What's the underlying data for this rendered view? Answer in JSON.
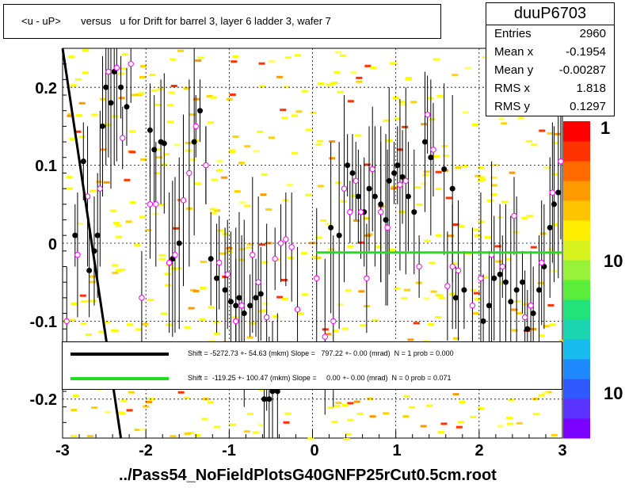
{
  "title": "<u - uP>       versus   u for Drift for barrel 3, layer 6 ladder 3, wafer 7",
  "stats": {
    "name": "duuP6703",
    "rows": [
      {
        "key": "Entries",
        "value": "2960"
      },
      {
        "key": "Mean x",
        "value": "-0.1954"
      },
      {
        "key": "Mean y",
        "value": "-0.00287"
      },
      {
        "key": "RMS x",
        "value": "1.818"
      },
      {
        "key": "RMS y",
        "value": "0.1297"
      }
    ]
  },
  "legend": [
    {
      "color": "#000000",
      "text": "Shift = -5272.73 +- 54.63 (mkm) Slope =   797.22 +- 0.00 (mrad)  N = 1 prob = 0.000"
    },
    {
      "color": "#22dd22",
      "text": "Shift =  -119.25 +- 100.47 (mkm) Slope =     0.00 +- 0.00 (mrad)  N = 0 prob = 0.071"
    }
  ],
  "footer": "../Pass54_NoFieldPlotsG40GNFP25rCut0.5cm.root",
  "z_ticks": [
    "1",
    "10",
    "10"
  ],
  "chart_data": {
    "type": "scatter",
    "xlim": [
      -3,
      3
    ],
    "ylim": [
      -0.25,
      0.25
    ],
    "x_ticks": [
      "-3",
      "-2",
      "-1",
      "0",
      "1",
      "2",
      "3"
    ],
    "y_ticks": [
      "-0.2",
      "-0.1",
      "0",
      "0.1",
      "0.2"
    ],
    "colors": {
      "black_fit": "#000000",
      "green_fit": "#22dd22",
      "markers_open": "#ff00ff",
      "markers_filled": "#000000"
    },
    "fits": [
      {
        "name": "black",
        "x": [
          -3.0,
          -2.3
        ],
        "y": [
          0.25,
          -0.25
        ]
      },
      {
        "name": "green",
        "x": [
          0.05,
          3.0
        ],
        "y": [
          -0.012,
          -0.012
        ]
      }
    ],
    "black_points": [
      [
        -2.85,
        0.01
      ],
      [
        -2.75,
        0.105
      ],
      [
        -2.68,
        -0.035
      ],
      [
        -2.62,
        -0.01
      ],
      [
        -2.58,
        0.01
      ],
      [
        -2.52,
        0.15
      ],
      [
        -2.48,
        0.2
      ],
      [
        -2.42,
        0.18
      ],
      [
        -2.38,
        0.22
      ],
      [
        -2.3,
        0.2
      ],
      [
        -2.23,
        0.175
      ],
      [
        -1.95,
        0.145
      ],
      [
        -1.9,
        0.12
      ],
      [
        -1.82,
        0.13
      ],
      [
        -1.78,
        0.128
      ],
      [
        -1.68,
        -0.02
      ],
      [
        -1.6,
        0.0
      ],
      [
        -1.42,
        0.13
      ],
      [
        -1.35,
        0.17
      ],
      [
        -1.28,
        0.1
      ],
      [
        -1.22,
        -0.02
      ],
      [
        -1.15,
        -0.045
      ],
      [
        -1.05,
        -0.06
      ],
      [
        -0.98,
        -0.075
      ],
      [
        -0.92,
        -0.08
      ],
      [
        -0.88,
        -0.07
      ],
      [
        -0.82,
        -0.09
      ],
      [
        -0.75,
        -0.08
      ],
      [
        -0.68,
        -0.07
      ],
      [
        -0.62,
        -0.065
      ],
      [
        -0.58,
        -0.2
      ],
      [
        -0.52,
        -0.2
      ],
      [
        -0.48,
        -0.19
      ],
      [
        -0.42,
        -0.19
      ],
      [
        0.22,
        0.02
      ],
      [
        0.32,
        0.01
      ],
      [
        0.42,
        0.1
      ],
      [
        0.48,
        0.09
      ],
      [
        0.55,
        0.06
      ],
      [
        0.62,
        0.04
      ],
      [
        0.68,
        0.07
      ],
      [
        0.75,
        0.06
      ],
      [
        0.82,
        0.05
      ],
      [
        0.88,
        0.03
      ],
      [
        0.92,
        0.08
      ],
      [
        0.98,
        0.09
      ],
      [
        1.02,
        0.1
      ],
      [
        1.08,
        0.085
      ],
      [
        1.15,
        0.06
      ],
      [
        1.22,
        0.04
      ],
      [
        1.35,
        0.13
      ],
      [
        1.42,
        0.11
      ],
      [
        1.58,
        0.095
      ],
      [
        1.68,
        0.07
      ],
      [
        1.72,
        -0.07
      ],
      [
        1.82,
        -0.06
      ],
      [
        2.05,
        -0.1
      ],
      [
        2.12,
        -0.08
      ],
      [
        2.18,
        -0.045
      ],
      [
        2.25,
        -0.04
      ],
      [
        2.32,
        -0.05
      ],
      [
        2.38,
        -0.075
      ],
      [
        2.45,
        -0.06
      ],
      [
        2.52,
        -0.05
      ],
      [
        2.58,
        -0.11
      ],
      [
        2.65,
        -0.09
      ],
      [
        2.72,
        -0.06
      ],
      [
        2.78,
        -0.03
      ],
      [
        2.85,
        0.02
      ],
      [
        2.9,
        0.05
      ],
      [
        2.95,
        0.065
      ]
    ],
    "open_points": [
      [
        -2.95,
        -0.1
      ],
      [
        -2.82,
        -0.015
      ],
      [
        -2.7,
        0.06
      ],
      [
        -2.55,
        0.07
      ],
      [
        -2.45,
        0.22
      ],
      [
        -2.35,
        0.225
      ],
      [
        -2.28,
        0.135
      ],
      [
        -2.18,
        0.23
      ],
      [
        -2.05,
        -0.07
      ],
      [
        -1.95,
        0.05
      ],
      [
        -1.88,
        0.05
      ],
      [
        -1.72,
        -0.025
      ],
      [
        -1.65,
        -0.015
      ],
      [
        -1.55,
        0.055
      ],
      [
        -1.48,
        0.09
      ],
      [
        -1.4,
        0.15
      ],
      [
        -1.28,
        0.1
      ],
      [
        -1.12,
        -0.025
      ],
      [
        -1.02,
        -0.04
      ],
      [
        -0.92,
        -0.1
      ],
      [
        -0.85,
        -0.08
      ],
      [
        -0.72,
        -0.015
      ],
      [
        -0.65,
        -0.05
      ],
      [
        -0.55,
        -0.095
      ],
      [
        -0.45,
        -0.02
      ],
      [
        -0.38,
        0.0
      ],
      [
        -0.32,
        0.005
      ],
      [
        -0.25,
        -0.005
      ],
      [
        -0.18,
        -0.085
      ],
      [
        0.05,
        -0.045
      ],
      [
        0.15,
        -0.12
      ],
      [
        0.25,
        -0.1
      ],
      [
        0.38,
        0.07
      ],
      [
        0.45,
        0.04
      ],
      [
        0.52,
        0.08
      ],
      [
        0.58,
        0.04
      ],
      [
        0.65,
        -0.045
      ],
      [
        0.72,
        0.095
      ],
      [
        0.82,
        0.04
      ],
      [
        0.9,
        0.02
      ],
      [
        1.05,
        0.075
      ],
      [
        1.12,
        0.08
      ],
      [
        1.28,
        -0.03
      ],
      [
        1.38,
        0.165
      ],
      [
        1.45,
        0.12
      ],
      [
        1.62,
        -0.055
      ],
      [
        1.68,
        -0.03
      ],
      [
        1.75,
        -0.035
      ],
      [
        1.92,
        -0.08
      ],
      [
        2.02,
        -0.045
      ],
      [
        2.15,
        -0.015
      ],
      [
        2.28,
        -0.03
      ],
      [
        2.42,
        0.035
      ],
      [
        2.55,
        -0.095
      ],
      [
        2.62,
        -0.08
      ],
      [
        2.75,
        -0.025
      ],
      [
        2.88,
        0.065
      ],
      [
        2.98,
        0.105
      ]
    ]
  }
}
